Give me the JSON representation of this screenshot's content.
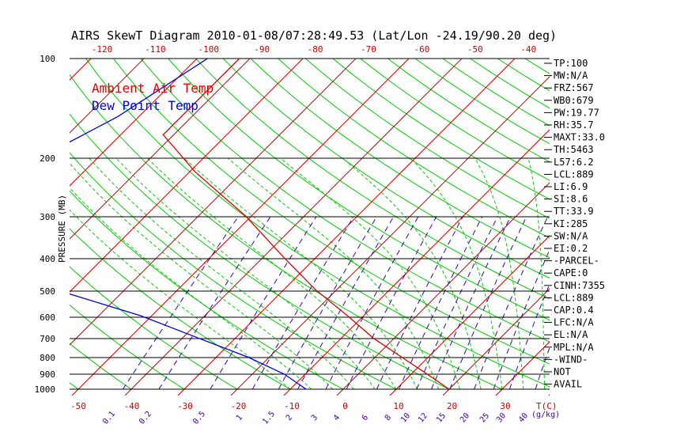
{
  "chart_data": {
    "type": "line",
    "title": "AIRS SkewT Diagram 2010-01-08/07:28:49.53 (Lat/Lon -24.19/90.20 deg)",
    "ylabel": "PRESSURE (MB)",
    "xlabel": "T(C)",
    "mixing_label": "(g/kg)",
    "pressure_ticks": [
      100,
      200,
      300,
      400,
      500,
      600,
      700,
      800,
      900,
      1000
    ],
    "temp_ticks_top": [
      -120,
      -110,
      -100,
      -90,
      -80,
      -70,
      -60,
      -50,
      -40
    ],
    "temp_ticks_bottom": [
      -50,
      -40,
      -30,
      -20,
      -10,
      0,
      10,
      20,
      30
    ],
    "mixing_ratio_ticks": [
      "0.1",
      "0.2",
      "0.5",
      "1",
      "1.5",
      "2",
      "3",
      "4",
      "6",
      "8",
      "10",
      "12",
      "15",
      "20",
      "25",
      "30",
      "40"
    ],
    "legend": [
      {
        "name": "Ambient Air Temp",
        "color": "#dd0000"
      },
      {
        "name": "Dew Point Temp",
        "color": "#0000dd"
      }
    ],
    "series": [
      {
        "name": "Ambient Air Temp",
        "points": [
          {
            "p": 100,
            "t": -82
          },
          {
            "p": 170,
            "t": -82
          },
          {
            "p": 220,
            "t": -69
          },
          {
            "p": 300,
            "t": -51
          },
          {
            "p": 400,
            "t": -36
          },
          {
            "p": 500,
            "t": -24
          },
          {
            "p": 600,
            "t": -13
          },
          {
            "p": 700,
            "t": -4
          },
          {
            "p": 800,
            "t": 5
          },
          {
            "p": 900,
            "t": 13
          },
          {
            "p": 1000,
            "t": 20
          }
        ]
      },
      {
        "name": "Dew Point Temp",
        "points": [
          {
            "p": 100,
            "t": -88
          },
          {
            "p": 150,
            "t": -94
          },
          {
            "p": 200,
            "t": -101
          },
          {
            "p": 300,
            "t": -94
          },
          {
            "p": 400,
            "t": -89
          },
          {
            "p": 500,
            "t": -73
          },
          {
            "p": 600,
            "t": -52
          },
          {
            "p": 700,
            "t": -37
          },
          {
            "p": 800,
            "t": -24
          },
          {
            "p": 900,
            "t": -14
          },
          {
            "p": 1000,
            "t": -7
          }
        ]
      }
    ]
  },
  "indices": [
    "TP:100",
    "MW:N/A",
    "FRZ:567",
    "WB0:679",
    "PW:19.77",
    "RH:35.7",
    "MAXT:33.0",
    "TH:5463",
    "L57:6.2",
    "LCL:889",
    "LI:6.9",
    "SI:8.6",
    "TT:33.9",
    "KI:285",
    "SW:N/A",
    "EI:0.2",
    "-PARCEL-",
    "CAPE:0",
    "CINH:7355",
    "LCL:889",
    "CAP:0.4",
    "LFC:N/A",
    "EL:N/A",
    "MPL:N/A",
    "-WIND-",
    "NOT",
    "AVAIL"
  ],
  "colors": {
    "isotherm": "#cc0000",
    "dry_adiabat": "#00cc00",
    "moist_adiabat": "#00cc00",
    "mixing_ratio": "#3a00a8",
    "isobar": "#000000"
  }
}
